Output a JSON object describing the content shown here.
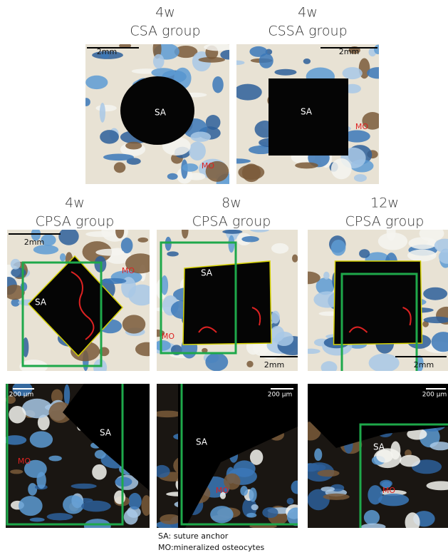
{
  "top_row": [
    {
      "time": "4w",
      "group": "CSA group",
      "scale": "2mm",
      "sa": "SA",
      "mo": "MO"
    },
    {
      "time": "4w",
      "group": "CSSA group",
      "scale": "2mm",
      "sa": "SA",
      "mo": "MO"
    }
  ],
  "middle_row": [
    {
      "time": "4w",
      "group": "CPSA group",
      "scale": "2mm",
      "sa": "SA",
      "mo": "MO"
    },
    {
      "time": "8w",
      "group": "CPSA group",
      "scale": "2mm",
      "sa": "SA",
      "mo": "MO"
    },
    {
      "time": "12w",
      "group": "CPSA group",
      "scale": "2mm"
    }
  ],
  "bottom_row": [
    {
      "scale": "200 μm",
      "sa": "SA",
      "mo": "MO"
    },
    {
      "scale": "200 μm",
      "sa": "SA",
      "mo": "MO"
    },
    {
      "scale": "200 μm",
      "sa": "SA",
      "mo": "MO"
    }
  ],
  "legend": [
    "SA: suture anchor",
    "MO:mineralized osteocytes"
  ]
}
